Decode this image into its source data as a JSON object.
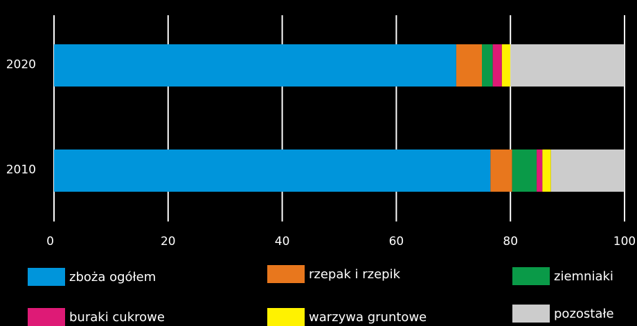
{
  "chart_data": {
    "type": "bar",
    "orientation": "horizontal",
    "stacked": true,
    "categories": [
      "2020",
      "2010"
    ],
    "series": [
      {
        "name": "zboża ogółem",
        "color": "#0095db",
        "values": [
          70.5,
          76.5
        ]
      },
      {
        "name": "rzepak i rzepik",
        "color": "#e8771d",
        "values": [
          4.5,
          3.8
        ]
      },
      {
        "name": "ziemniaki",
        "color": "#0a9a48",
        "values": [
          1.9,
          4.3
        ]
      },
      {
        "name": "buraki cukrowe",
        "color": "#de1a76",
        "values": [
          1.6,
          1.0
        ]
      },
      {
        "name": "warzywa gruntowe",
        "color": "#fff200",
        "values": [
          1.5,
          1.5
        ]
      },
      {
        "name": "pozostałe",
        "color": "#cccccc",
        "values": [
          20.0,
          12.9
        ]
      }
    ],
    "xlim": [
      0,
      100
    ],
    "xticks": [
      "0",
      "20",
      "40",
      "60",
      "80",
      "100"
    ],
    "grid": true,
    "legend_position": "bottom"
  }
}
